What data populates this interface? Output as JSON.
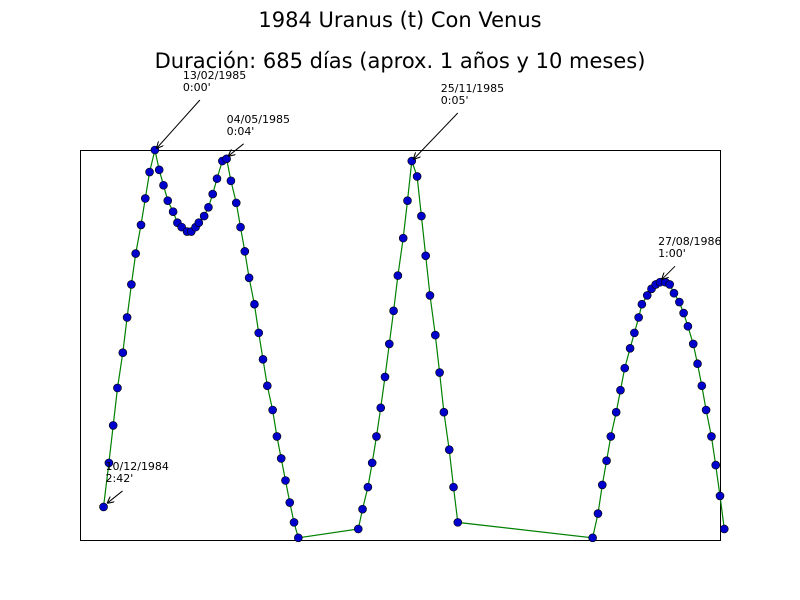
{
  "chart_data": {
    "type": "line",
    "title": "1984 Uranus (t) Con Venus",
    "subtitle": "Duración: 685 días (aprox. 1 años y 10 meses)",
    "x": [
      22,
      27,
      31,
      35,
      40,
      44,
      48,
      52,
      57,
      61,
      65,
      70,
      74,
      78,
      82,
      87,
      91,
      95,
      100,
      104,
      108,
      111,
      116,
      120,
      124,
      128,
      133,
      137,
      141,
      146,
      150,
      154,
      158,
      163,
      167,
      171,
      175,
      180,
      184,
      188,
      192,
      196,
      200,
      204,
      260,
      264,
      269,
      273,
      277,
      281,
      285,
      289,
      293,
      297,
      302,
      306,
      310,
      315,
      319,
      323,
      327,
      332,
      336,
      340,
      345,
      349,
      353,
      479,
      484,
      488,
      492,
      496,
      501,
      505,
      509,
      514,
      518,
      522,
      525,
      530,
      534,
      538,
      542,
      547,
      551,
      555,
      560,
      564,
      568,
      573,
      577,
      581,
      585,
      590,
      594,
      598,
      602
    ],
    "series": [
      {
        "color": "#008000",
        "marker_color": "#0000cc",
        "values": [
          162,
          142,
          125,
          108,
          92,
          76,
          61,
          47,
          34,
          22,
          10,
          0,
          9,
          16,
          23,
          28,
          33,
          35,
          37,
          37,
          35,
          33,
          30,
          26,
          20,
          13,
          5,
          4,
          14,
          24,
          35,
          46,
          58,
          70,
          83,
          95,
          107,
          118,
          130,
          140,
          150,
          160,
          169,
          176,
          172,
          163,
          153,
          142,
          130,
          117,
          103,
          88,
          73,
          57,
          40,
          23,
          5,
          12,
          30,
          48,
          66,
          84,
          101,
          119,
          136,
          153,
          169,
          176,
          165,
          152,
          141,
          130,
          119,
          109,
          99,
          90,
          83,
          76,
          70,
          66,
          63,
          61,
          60,
          60,
          61,
          65,
          69,
          74,
          80,
          88,
          97,
          107,
          118,
          130,
          143,
          157,
          172
        ]
      }
    ],
    "xlim": [
      0,
      598
    ],
    "ylim": [
      0,
      177
    ],
    "y_inverted": true,
    "annotations": [
      {
        "date": "10/12/1984",
        "label": "2:42'",
        "x": 22,
        "y": 162
      },
      {
        "date": "13/02/1985",
        "label": "0:00'",
        "x": 70,
        "y": 0
      },
      {
        "date": "04/05/1985",
        "label": "0:04'",
        "x": 137,
        "y": 4
      },
      {
        "date": "25/11/1985",
        "label": "0:05'",
        "x": 310,
        "y": 5
      },
      {
        "date": "27/08/1986",
        "label": "1:00'",
        "x": 542,
        "y": 60
      }
    ]
  }
}
